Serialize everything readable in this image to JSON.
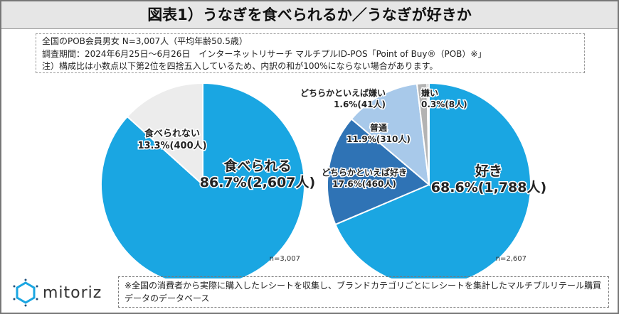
{
  "title": "図表1）うなぎを食べられるか／うなぎが好きか",
  "notes": [
    "全国のPOB会員男女 N=3,007人（平均年齢50.5歳）",
    "調査期間：2024年6月25日～6月26日　インターネットリサーチ マルチプルID-POS「Point of Buy®（POB）※」",
    "注）構成比は小数点以下第2位を四捨五入しているため、内訳の和が100%にならない場合があります。"
  ],
  "footnote": "※全国の消費者から実際に購入したレシートを収集し、ブランドカテゴリごとにレシートを集計したマルチプルリテール購買データのデータベース",
  "logo": "mitoriz",
  "chart_data": [
    {
      "type": "pie",
      "n_label": "n=3,007",
      "start": "top",
      "direction": "clockwise",
      "slices": [
        {
          "name": "食べられる",
          "percent": 86.7,
          "count_label": "86.7%(2,607人)",
          "color": "#1aa6e2"
        },
        {
          "name": "食べられない",
          "percent": 13.3,
          "count_label": "13.3%(400人)",
          "color": "#ececec"
        }
      ]
    },
    {
      "type": "pie",
      "n_label": "n=2,607",
      "start": "top",
      "direction": "clockwise",
      "slices": [
        {
          "name": "好き",
          "percent": 68.6,
          "count_label": "68.6%(1,788人)",
          "color": "#1aa6e2"
        },
        {
          "name": "どちらかといえば好き",
          "percent": 17.6,
          "count_label": "17.6%(460人)",
          "color": "#2f73b5"
        },
        {
          "name": "普通",
          "percent": 11.9,
          "count_label": "11.9%(310人)",
          "color": "#a8c9ea"
        },
        {
          "name": "どちらかといえば嫌い",
          "percent": 1.6,
          "count_label": "1.6%(41人)",
          "color": "#b3b3b3"
        },
        {
          "name": "嫌い",
          "percent": 0.3,
          "count_label": "0.3%(8人)",
          "color": "#6d6d6d"
        }
      ]
    }
  ]
}
